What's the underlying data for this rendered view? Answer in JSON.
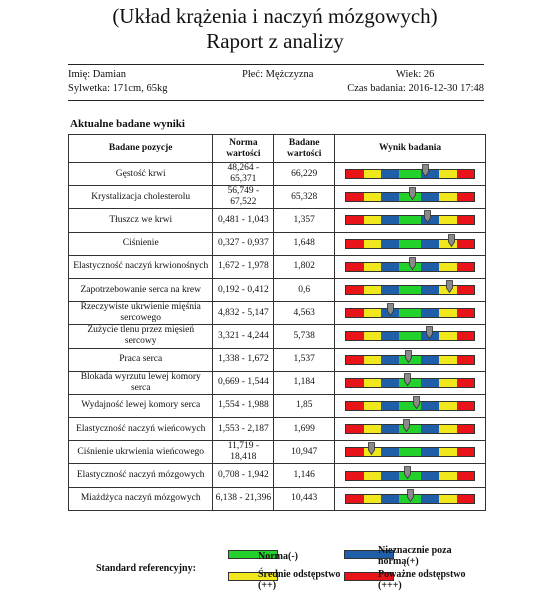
{
  "header": {
    "title": "(Układ krążenia i naczyń mózgowych)",
    "subtitle": "Raport z analizy"
  },
  "patient": {
    "name": "Imię: Damian",
    "gender": "Płeć: Mężczyzna",
    "age": "Wiek: 26",
    "figure": "Sylwetka: 171cm, 65kg",
    "exam_time": "Czas badania: 2016-12-30 17:48"
  },
  "section_title": "Aktualne badane wyniki",
  "table": {
    "headers": [
      "Badane pozycje",
      "Norma wartości",
      "Badane wartości",
      "Wynik badania"
    ],
    "rows": [
      {
        "name": "Gęstość krwi",
        "norm": "48,264 - 65,371",
        "value": "66,229",
        "level": 0.62
      },
      {
        "name": "Krystalizacja cholesterolu",
        "norm": "56,749 - 67,522",
        "value": "65,328",
        "level": 0.52
      },
      {
        "name": "Tłuszcz we krwi",
        "norm": "0,481 - 1,043",
        "value": "1,357",
        "level": 0.64
      },
      {
        "name": "Ciśnienie",
        "norm": "0,327 - 0,937",
        "value": "1,648",
        "level": 0.82
      },
      {
        "name": "Elastyczność naczyń krwionośnych",
        "norm": "1,672 - 1,978",
        "value": "1,802",
        "level": 0.52
      },
      {
        "name": "Zapotrzebowanie serca na krew",
        "norm": "0,192 - 0,412",
        "value": "0,6",
        "level": 0.81
      },
      {
        "name": "Rzeczywiste ukrwienie mięśnia sercowego",
        "norm": "4,832 - 5,147",
        "value": "4,563",
        "level": 0.35
      },
      {
        "name": "Zużycie tlenu przez mięsień sercowy",
        "norm": "3,321 - 4,244",
        "value": "5,738",
        "level": 0.65
      },
      {
        "name": "Praca serca",
        "norm": "1,338 - 1,672",
        "value": "1,537",
        "level": 0.49
      },
      {
        "name": "Blokada wyrzutu lewej komory serca",
        "norm": "0,669 - 1,544",
        "value": "1,184",
        "level": 0.48
      },
      {
        "name": "Wydajność lewej komory serca",
        "norm": "1,554 - 1,988",
        "value": "1,85",
        "level": 0.55
      },
      {
        "name": "Elastyczność naczyń wieńcowych",
        "norm": "1,553 - 2,187",
        "value": "1,699",
        "level": 0.47
      },
      {
        "name": "Ciśnienie ukrwienia wieńcowego",
        "norm": "11,719 - 18,418",
        "value": "10,947",
        "level": 0.2
      },
      {
        "name": "Elastyczność naczyń mózgowych",
        "norm": "0,708 - 1,942",
        "value": "1,146",
        "level": 0.48
      },
      {
        "name": "Miażdżyca naczyń mózgowych",
        "norm": "6,138 - 21,396",
        "value": "10,443",
        "level": 0.5
      }
    ]
  },
  "bar_colors": [
    "#e8141a",
    "#f0e81c",
    "#1f5fa8",
    "#22d12b",
    "#1f5fa8",
    "#f0e81c",
    "#e8141a"
  ],
  "legend": {
    "label": "Standard referencyjny:",
    "items": [
      {
        "label": "Norma(-)",
        "color": "#22d12b"
      },
      {
        "label": "Nieznacznie poza normą(+)",
        "color": "#1f5fa8"
      },
      {
        "label": "Średnie odstępstwo (++)",
        "color": "#f0e81c"
      },
      {
        "label": "Poważne odstępstwo (+++)",
        "color": "#e8141a"
      }
    ]
  }
}
